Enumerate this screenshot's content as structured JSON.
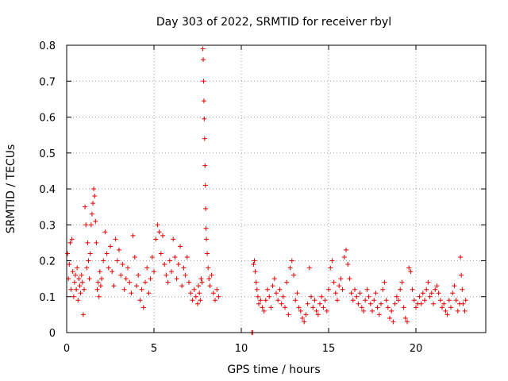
{
  "chart_data": {
    "type": "scatter",
    "title": "Day 303 of 2022, SRMTID for receiver rbyl",
    "xlabel": "GPS time / hours",
    "ylabel": "SRMTID / TECUs",
    "xlim": [
      0,
      24
    ],
    "ylim": [
      0,
      0.8
    ],
    "xticks": [
      0,
      5,
      10,
      15,
      20
    ],
    "yticks": [
      0,
      0.1,
      0.2,
      0.3,
      0.4,
      0.5,
      0.6,
      0.7,
      0.8
    ],
    "xtick_labels": [
      "0",
      "5",
      "10",
      "15",
      "20"
    ],
    "ytick_labels": [
      "0",
      "0.1",
      "0.2",
      "0.3",
      "0.4",
      "0.5",
      "0.6",
      "0.7",
      "0.8"
    ],
    "grid": true,
    "marker": "+",
    "color": "#e00000",
    "series": [
      {
        "name": "SRMTID",
        "points": [
          [
            0.05,
            0.22
          ],
          [
            0.1,
            0.15
          ],
          [
            0.15,
            0.19
          ],
          [
            0.2,
            0.25
          ],
          [
            0.25,
            0.12
          ],
          [
            0.3,
            0.26
          ],
          [
            0.35,
            0.17
          ],
          [
            0.4,
            0.1
          ],
          [
            0.45,
            0.14
          ],
          [
            0.5,
            0.16
          ],
          [
            0.55,
            0.12
          ],
          [
            0.6,
            0.18
          ],
          [
            0.65,
            0.09
          ],
          [
            0.7,
            0.15
          ],
          [
            0.75,
            0.13
          ],
          [
            0.8,
            0.11
          ],
          [
            0.85,
            0.16
          ],
          [
            0.9,
            0.14
          ],
          [
            0.95,
            0.05
          ],
          [
            1.0,
            0.12
          ],
          [
            1.05,
            0.35
          ],
          [
            1.1,
            0.3
          ],
          [
            1.15,
            0.18
          ],
          [
            1.2,
            0.25
          ],
          [
            1.25,
            0.2
          ],
          [
            1.3,
            0.15
          ],
          [
            1.35,
            0.22
          ],
          [
            1.4,
            0.3
          ],
          [
            1.45,
            0.33
          ],
          [
            1.5,
            0.36
          ],
          [
            1.55,
            0.4
          ],
          [
            1.6,
            0.38
          ],
          [
            1.65,
            0.31
          ],
          [
            1.7,
            0.25
          ],
          [
            1.75,
            0.12
          ],
          [
            1.8,
            0.14
          ],
          [
            1.85,
            0.1
          ],
          [
            1.9,
            0.17
          ],
          [
            1.95,
            0.13
          ],
          [
            2.0,
            0.15
          ],
          [
            2.1,
            0.2
          ],
          [
            2.2,
            0.28
          ],
          [
            2.3,
            0.22
          ],
          [
            2.4,
            0.18
          ],
          [
            2.5,
            0.24
          ],
          [
            2.6,
            0.17
          ],
          [
            2.7,
            0.13
          ],
          [
            2.8,
            0.26
          ],
          [
            2.9,
            0.2
          ],
          [
            3.0,
            0.23
          ],
          [
            3.1,
            0.16
          ],
          [
            3.2,
            0.19
          ],
          [
            3.3,
            0.12
          ],
          [
            3.4,
            0.15
          ],
          [
            3.5,
            0.18
          ],
          [
            3.6,
            0.14
          ],
          [
            3.7,
            0.11
          ],
          [
            3.8,
            0.27
          ],
          [
            3.9,
            0.21
          ],
          [
            4.0,
            0.13
          ],
          [
            4.1,
            0.16
          ],
          [
            4.2,
            0.09
          ],
          [
            4.3,
            0.12
          ],
          [
            4.4,
            0.07
          ],
          [
            4.5,
            0.14
          ],
          [
            4.6,
            0.18
          ],
          [
            4.7,
            0.11
          ],
          [
            4.8,
            0.15
          ],
          [
            4.9,
            0.21
          ],
          [
            5.0,
            0.17
          ],
          [
            5.1,
            0.26
          ],
          [
            5.2,
            0.3
          ],
          [
            5.3,
            0.28
          ],
          [
            5.4,
            0.22
          ],
          [
            5.5,
            0.27
          ],
          [
            5.6,
            0.19
          ],
          [
            5.7,
            0.16
          ],
          [
            5.8,
            0.14
          ],
          [
            5.9,
            0.2
          ],
          [
            6.0,
            0.17
          ],
          [
            6.1,
            0.26
          ],
          [
            6.2,
            0.21
          ],
          [
            6.3,
            0.15
          ],
          [
            6.4,
            0.19
          ],
          [
            6.5,
            0.24
          ],
          [
            6.6,
            0.13
          ],
          [
            6.7,
            0.18
          ],
          [
            6.8,
            0.16
          ],
          [
            6.9,
            0.21
          ],
          [
            7.0,
            0.14
          ],
          [
            7.1,
            0.11
          ],
          [
            7.2,
            0.09
          ],
          [
            7.3,
            0.12
          ],
          [
            7.4,
            0.1
          ],
          [
            7.5,
            0.08
          ],
          [
            7.55,
            0.13
          ],
          [
            7.6,
            0.11
          ],
          [
            7.65,
            0.09
          ],
          [
            7.7,
            0.15
          ],
          [
            7.75,
            0.14
          ],
          [
            7.8,
            0.79
          ],
          [
            7.82,
            0.76
          ],
          [
            7.84,
            0.7
          ],
          [
            7.86,
            0.645
          ],
          [
            7.88,
            0.595
          ],
          [
            7.9,
            0.54
          ],
          [
            7.92,
            0.465
          ],
          [
            7.94,
            0.41
          ],
          [
            7.96,
            0.345
          ],
          [
            7.98,
            0.29
          ],
          [
            8.0,
            0.26
          ],
          [
            8.05,
            0.22
          ],
          [
            8.1,
            0.18
          ],
          [
            8.15,
            0.15
          ],
          [
            8.2,
            0.13
          ],
          [
            8.3,
            0.16
          ],
          [
            8.4,
            0.11
          ],
          [
            8.5,
            0.09
          ],
          [
            8.6,
            0.12
          ],
          [
            8.7,
            0.1
          ],
          [
            10.6,
            0.0
          ],
          [
            10.65,
            0.0
          ],
          [
            10.7,
            0.19
          ],
          [
            10.75,
            0.2
          ],
          [
            10.8,
            0.17
          ],
          [
            10.85,
            0.14
          ],
          [
            10.9,
            0.12
          ],
          [
            10.95,
            0.1
          ],
          [
            11.0,
            0.08
          ],
          [
            11.1,
            0.09
          ],
          [
            11.2,
            0.07
          ],
          [
            11.3,
            0.06
          ],
          [
            11.4,
            0.09
          ],
          [
            11.5,
            0.12
          ],
          [
            11.6,
            0.1
          ],
          [
            11.7,
            0.07
          ],
          [
            11.8,
            0.13
          ],
          [
            11.9,
            0.15
          ],
          [
            12.0,
            0.11
          ],
          [
            12.1,
            0.09
          ],
          [
            12.2,
            0.12
          ],
          [
            12.3,
            0.08
          ],
          [
            12.4,
            0.1
          ],
          [
            12.5,
            0.07
          ],
          [
            12.6,
            0.14
          ],
          [
            12.7,
            0.05
          ],
          [
            12.8,
            0.18
          ],
          [
            12.9,
            0.2
          ],
          [
            13.0,
            0.16
          ],
          [
            13.1,
            0.09
          ],
          [
            13.2,
            0.11
          ],
          [
            13.3,
            0.07
          ],
          [
            13.4,
            0.06
          ],
          [
            13.5,
            0.04
          ],
          [
            13.6,
            0.03
          ],
          [
            13.7,
            0.05
          ],
          [
            13.8,
            0.08
          ],
          [
            13.9,
            0.18
          ],
          [
            14.0,
            0.1
          ],
          [
            14.1,
            0.07
          ],
          [
            14.2,
            0.09
          ],
          [
            14.3,
            0.06
          ],
          [
            14.4,
            0.05
          ],
          [
            14.5,
            0.08
          ],
          [
            14.6,
            0.1
          ],
          [
            14.7,
            0.07
          ],
          [
            14.8,
            0.09
          ],
          [
            14.9,
            0.06
          ],
          [
            15.0,
            0.12
          ],
          [
            15.1,
            0.18
          ],
          [
            15.2,
            0.2
          ],
          [
            15.3,
            0.14
          ],
          [
            15.4,
            0.11
          ],
          [
            15.5,
            0.09
          ],
          [
            15.6,
            0.13
          ],
          [
            15.7,
            0.15
          ],
          [
            15.8,
            0.12
          ],
          [
            15.9,
            0.21
          ],
          [
            16.0,
            0.23
          ],
          [
            16.1,
            0.19
          ],
          [
            16.2,
            0.15
          ],
          [
            16.3,
            0.11
          ],
          [
            16.4,
            0.09
          ],
          [
            16.5,
            0.12
          ],
          [
            16.6,
            0.1
          ],
          [
            16.7,
            0.08
          ],
          [
            16.8,
            0.11
          ],
          [
            16.9,
            0.07
          ],
          [
            17.0,
            0.06
          ],
          [
            17.1,
            0.09
          ],
          [
            17.2,
            0.12
          ],
          [
            17.3,
            0.1
          ],
          [
            17.4,
            0.08
          ],
          [
            17.5,
            0.06
          ],
          [
            17.6,
            0.09
          ],
          [
            17.7,
            0.11
          ],
          [
            17.8,
            0.07
          ],
          [
            17.9,
            0.05
          ],
          [
            18.0,
            0.08
          ],
          [
            18.1,
            0.12
          ],
          [
            18.2,
            0.14
          ],
          [
            18.3,
            0.09
          ],
          [
            18.4,
            0.07
          ],
          [
            18.5,
            0.04
          ],
          [
            18.6,
            0.06
          ],
          [
            18.7,
            0.03
          ],
          [
            18.8,
            0.08
          ],
          [
            18.9,
            0.1
          ],
          [
            19.0,
            0.09
          ],
          [
            19.1,
            0.12
          ],
          [
            19.2,
            0.14
          ],
          [
            19.3,
            0.07
          ],
          [
            19.4,
            0.04
          ],
          [
            19.5,
            0.03
          ],
          [
            19.6,
            0.18
          ],
          [
            19.7,
            0.17
          ],
          [
            19.8,
            0.12
          ],
          [
            19.9,
            0.09
          ],
          [
            20.0,
            0.07
          ],
          [
            20.1,
            0.08
          ],
          [
            20.2,
            0.1
          ],
          [
            20.3,
            0.08
          ],
          [
            20.4,
            0.11
          ],
          [
            20.5,
            0.09
          ],
          [
            20.6,
            0.12
          ],
          [
            20.7,
            0.14
          ],
          [
            20.8,
            0.1
          ],
          [
            20.9,
            0.11
          ],
          [
            21.0,
            0.08
          ],
          [
            21.1,
            0.12
          ],
          [
            21.2,
            0.13
          ],
          [
            21.3,
            0.11
          ],
          [
            21.4,
            0.09
          ],
          [
            21.5,
            0.07
          ],
          [
            21.6,
            0.08
          ],
          [
            21.7,
            0.06
          ],
          [
            21.8,
            0.05
          ],
          [
            21.9,
            0.09
          ],
          [
            22.0,
            0.07
          ],
          [
            22.1,
            0.11
          ],
          [
            22.2,
            0.13
          ],
          [
            22.3,
            0.09
          ],
          [
            22.4,
            0.06
          ],
          [
            22.5,
            0.08
          ],
          [
            22.55,
            0.21
          ],
          [
            22.6,
            0.16
          ],
          [
            22.65,
            0.12
          ],
          [
            22.7,
            0.08
          ],
          [
            22.8,
            0.06
          ],
          [
            22.85,
            0.09
          ]
        ]
      }
    ]
  }
}
